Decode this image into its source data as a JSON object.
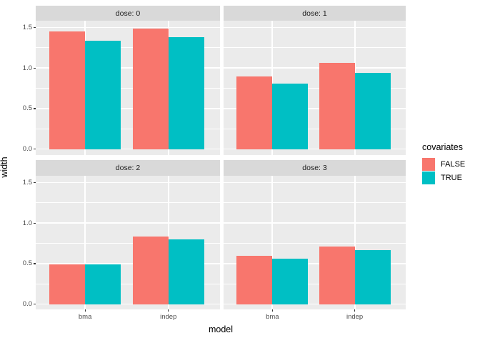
{
  "colors": {
    "false_fill": "#F8766D",
    "true_fill": "#00BFC4",
    "panel_bg": "#EBEBEB",
    "strip_bg": "#D9D9D9",
    "grid": "#FFFFFF",
    "tick_text": "#4D4D4D",
    "title_text": "#000000"
  },
  "chart_data": {
    "type": "bar",
    "facet_variable": "dose",
    "categories": [
      "bma",
      "indep"
    ],
    "xlabel": "model",
    "ylabel": "width",
    "y_ticks": [
      0.0,
      0.5,
      1.0,
      1.5
    ],
    "y_tick_labels": [
      "0.0",
      "0.5",
      "1.0",
      "1.5"
    ],
    "ylim": [
      -0.075,
      1.565
    ],
    "grid": true,
    "facets": [
      {
        "label": "dose: 0",
        "series": [
          {
            "name": "FALSE",
            "values": [
              1.45,
              1.49
            ]
          },
          {
            "name": "TRUE",
            "values": [
              1.34,
              1.38
            ]
          }
        ]
      },
      {
        "label": "dose: 1",
        "series": [
          {
            "name": "FALSE",
            "values": [
              0.9,
              1.06
            ]
          },
          {
            "name": "TRUE",
            "values": [
              0.81,
              0.94
            ]
          }
        ]
      },
      {
        "label": "dose: 2",
        "series": [
          {
            "name": "FALSE",
            "values": [
              0.49,
              0.83
            ]
          },
          {
            "name": "TRUE",
            "values": [
              0.49,
              0.8
            ]
          }
        ]
      },
      {
        "label": "dose: 3",
        "series": [
          {
            "name": "FALSE",
            "values": [
              0.6,
              0.71
            ]
          },
          {
            "name": "TRUE",
            "values": [
              0.56,
              0.67
            ]
          }
        ]
      }
    ],
    "legend": {
      "title": "covariates",
      "position": "right",
      "entries": [
        {
          "label": "FALSE",
          "color": "#F8766D"
        },
        {
          "label": "TRUE",
          "color": "#00BFC4"
        }
      ]
    }
  }
}
